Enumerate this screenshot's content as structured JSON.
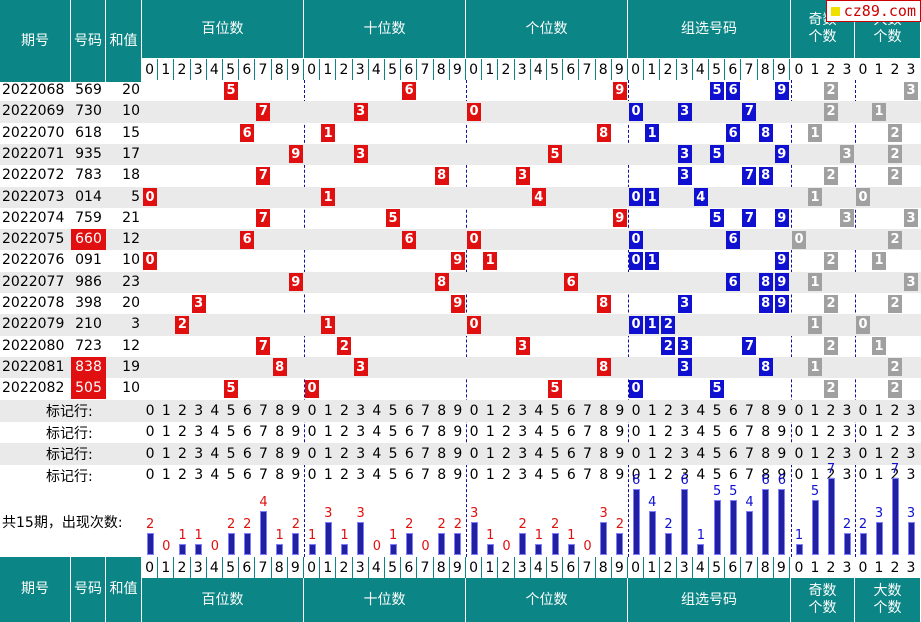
{
  "logo": {
    "text": "cz89.com"
  },
  "header": {
    "period": "期号",
    "number": "号码",
    "sum": "和值",
    "hundreds": "百位数",
    "tens": "十位数",
    "units": "个位数",
    "group": "组选号码",
    "odd": "奇数个数",
    "big": "大数个数"
  },
  "digits10": [
    "0",
    "1",
    "2",
    "3",
    "4",
    "5",
    "6",
    "7",
    "8",
    "9"
  ],
  "digits4": [
    "0",
    "1",
    "2",
    "3"
  ],
  "rows": [
    {
      "period": "2022068",
      "number": "569",
      "sum": "20",
      "hl": false,
      "h": 5,
      "t": 6,
      "u": 9,
      "g": [
        5,
        6,
        9
      ],
      "odd": 2,
      "big": 3
    },
    {
      "period": "2022069",
      "number": "730",
      "sum": "10",
      "hl": false,
      "h": 7,
      "t": 3,
      "u": 0,
      "g": [
        0,
        3,
        7
      ],
      "odd": 2,
      "big": 1
    },
    {
      "period": "2022070",
      "number": "618",
      "sum": "15",
      "hl": false,
      "h": 6,
      "t": 1,
      "u": 8,
      "g": [
        1,
        6,
        8
      ],
      "odd": 1,
      "big": 2
    },
    {
      "period": "2022071",
      "number": "935",
      "sum": "17",
      "hl": false,
      "h": 9,
      "t": 3,
      "u": 5,
      "g": [
        3,
        5,
        9
      ],
      "odd": 3,
      "big": 2
    },
    {
      "period": "2022072",
      "number": "783",
      "sum": "18",
      "hl": false,
      "h": 7,
      "t": 8,
      "u": 3,
      "g": [
        3,
        7,
        8
      ],
      "odd": 2,
      "big": 2
    },
    {
      "period": "2022073",
      "number": "014",
      "sum": "5",
      "hl": false,
      "h": 0,
      "t": 1,
      "u": 4,
      "g": [
        0,
        1,
        4
      ],
      "odd": 1,
      "big": 0
    },
    {
      "period": "2022074",
      "number": "759",
      "sum": "21",
      "hl": false,
      "h": 7,
      "t": 5,
      "u": 9,
      "g": [
        5,
        7,
        9
      ],
      "odd": 3,
      "big": 3
    },
    {
      "period": "2022075",
      "number": "660",
      "sum": "12",
      "hl": true,
      "h": 6,
      "t": 6,
      "u": 0,
      "g": [
        0,
        6
      ],
      "odd": 0,
      "big": 2
    },
    {
      "period": "2022076",
      "number": "091",
      "sum": "10",
      "hl": false,
      "h": 0,
      "t": 9,
      "u": 1,
      "g": [
        0,
        1,
        9
      ],
      "odd": 2,
      "big": 1
    },
    {
      "period": "2022077",
      "number": "986",
      "sum": "23",
      "hl": false,
      "h": 9,
      "t": 8,
      "u": 6,
      "g": [
        6,
        8,
        9
      ],
      "odd": 1,
      "big": 3
    },
    {
      "period": "2022078",
      "number": "398",
      "sum": "20",
      "hl": false,
      "h": 3,
      "t": 9,
      "u": 8,
      "g": [
        3,
        8,
        9
      ],
      "odd": 2,
      "big": 2
    },
    {
      "period": "2022079",
      "number": "210",
      "sum": "3",
      "hl": false,
      "h": 2,
      "t": 1,
      "u": 0,
      "g": [
        0,
        1,
        2
      ],
      "odd": 1,
      "big": 0
    },
    {
      "period": "2022080",
      "number": "723",
      "sum": "12",
      "hl": false,
      "h": 7,
      "t": 2,
      "u": 3,
      "g": [
        2,
        3,
        7
      ],
      "odd": 2,
      "big": 1
    },
    {
      "period": "2022081",
      "number": "838",
      "sum": "19",
      "hl": true,
      "h": 8,
      "t": 3,
      "u": 8,
      "g": [
        3,
        8
      ],
      "odd": 1,
      "big": 2
    },
    {
      "period": "2022082",
      "number": "505",
      "sum": "10",
      "hl": true,
      "h": 5,
      "t": 0,
      "u": 5,
      "g": [
        0,
        5
      ],
      "odd": 2,
      "big": 2
    }
  ],
  "marker_label": "标记行:",
  "count_label": "共15期，出现次数:",
  "chart_data": {
    "type": "bar",
    "title": "共15期，出现次数:",
    "groups": [
      {
        "name": "百位数",
        "categories": [
          "0",
          "1",
          "2",
          "3",
          "4",
          "5",
          "6",
          "7",
          "8",
          "9"
        ],
        "values": [
          2,
          0,
          1,
          1,
          0,
          2,
          2,
          4,
          1,
          2
        ]
      },
      {
        "name": "十位数",
        "categories": [
          "0",
          "1",
          "2",
          "3",
          "4",
          "5",
          "6",
          "7",
          "8",
          "9"
        ],
        "values": [
          1,
          3,
          1,
          3,
          0,
          1,
          2,
          0,
          2,
          2
        ]
      },
      {
        "name": "个位数",
        "categories": [
          "0",
          "1",
          "2",
          "3",
          "4",
          "5",
          "6",
          "7",
          "8",
          "9"
        ],
        "values": [
          3,
          1,
          0,
          2,
          1,
          2,
          1,
          0,
          3,
          2
        ]
      },
      {
        "name": "组选号码",
        "categories": [
          "0",
          "1",
          "2",
          "3",
          "4",
          "5",
          "6",
          "7",
          "8",
          "9"
        ],
        "values": [
          6,
          4,
          2,
          6,
          1,
          5,
          5,
          4,
          6,
          6
        ]
      },
      {
        "name": "奇数个数",
        "categories": [
          "0",
          "1",
          "2",
          "3"
        ],
        "values": [
          1,
          5,
          7,
          2
        ]
      },
      {
        "name": "大数个数",
        "categories": [
          "0",
          "1",
          "2",
          "3"
        ],
        "values": [
          2,
          3,
          7,
          3
        ]
      }
    ],
    "colors": {
      "positional": "#e01010",
      "aggregate": "#1010d0",
      "bar": "#2020a0"
    }
  },
  "colors": {
    "header": "#0b8585",
    "red": "#e01010",
    "blue": "#1010d0",
    "gray": "#a0a0a0",
    "stripe": "#eaeaea"
  }
}
